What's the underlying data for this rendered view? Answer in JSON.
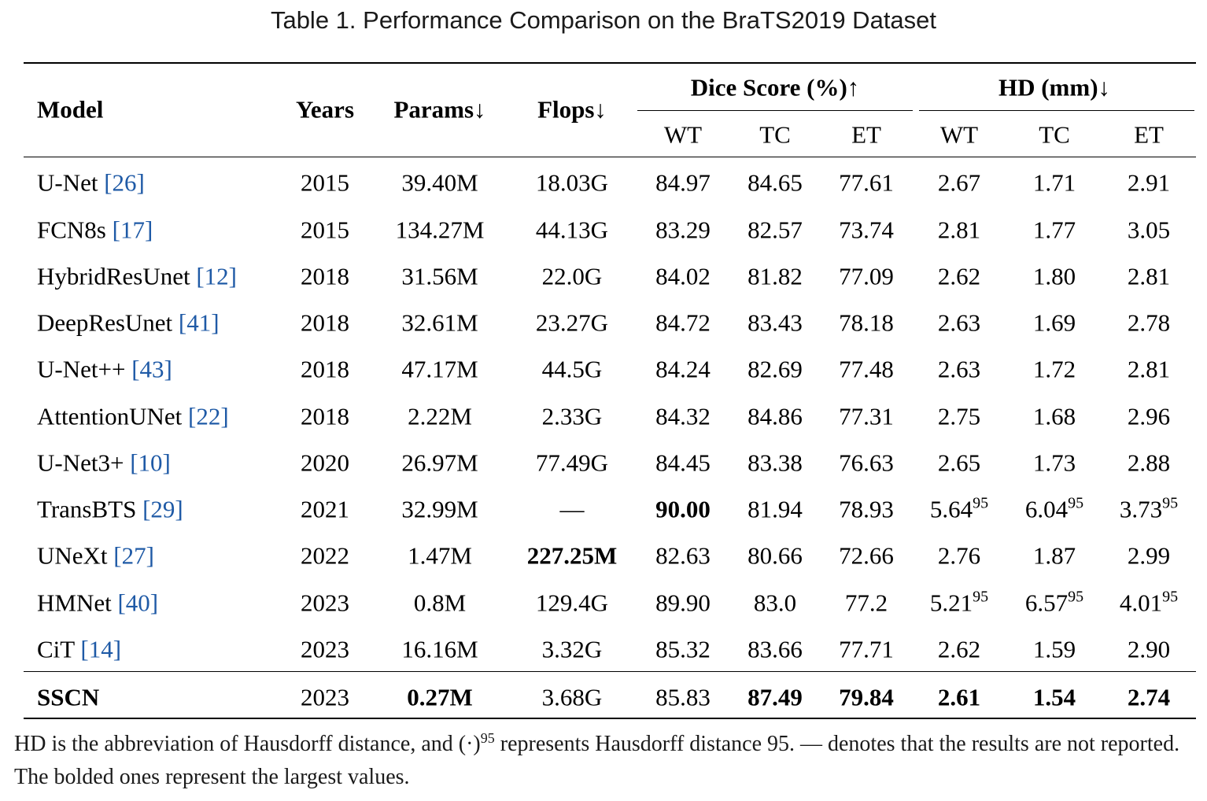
{
  "caption": "Table 1.  Performance Comparison on the BraTS2019 Dataset",
  "headers": {
    "model": "Model",
    "years": "Years",
    "params": "Params↓",
    "flops": "Flops↓",
    "dice_group": "Dice Score (%)↑",
    "hd_group": "HD (mm)↓",
    "sub": [
      "WT",
      "TC",
      "ET",
      "WT",
      "TC",
      "ET"
    ]
  },
  "rows": [
    {
      "name": "U-Net",
      "ref": "[26]",
      "year": "2015",
      "params": "39.40M",
      "flops": "18.03G",
      "dice": [
        "84.97",
        "84.65",
        "77.61"
      ],
      "hd": [
        "2.67",
        "1.71",
        "2.91"
      ]
    },
    {
      "name": "FCN8s",
      "ref": "[17]",
      "year": "2015",
      "params": "134.27M",
      "flops": "44.13G",
      "dice": [
        "83.29",
        "82.57",
        "73.74"
      ],
      "hd": [
        "2.81",
        "1.77",
        "3.05"
      ]
    },
    {
      "name": "HybridResUnet",
      "ref": "[12]",
      "year": "2018",
      "params": "31.56M",
      "flops": "22.0G",
      "dice": [
        "84.02",
        "81.82",
        "77.09"
      ],
      "hd": [
        "2.62",
        "1.80",
        "2.81"
      ]
    },
    {
      "name": "DeepResUnet",
      "ref": "[41]",
      "year": "2018",
      "params": "32.61M",
      "flops": "23.27G",
      "dice": [
        "84.72",
        "83.43",
        "78.18"
      ],
      "hd": [
        "2.63",
        "1.69",
        "2.78"
      ]
    },
    {
      "name": "U-Net++",
      "ref": "[43]",
      "year": "2018",
      "params": "47.17M",
      "flops": "44.5G",
      "dice": [
        "84.24",
        "82.69",
        "77.48"
      ],
      "hd": [
        "2.63",
        "1.72",
        "2.81"
      ]
    },
    {
      "name": "AttentionUNet",
      "ref": "[22]",
      "year": "2018",
      "params": "2.22M",
      "flops": "2.33G",
      "dice": [
        "84.32",
        "84.86",
        "77.31"
      ],
      "hd": [
        "2.75",
        "1.68",
        "2.96"
      ]
    },
    {
      "name": "U-Net3+",
      "ref": "[10]",
      "year": "2020",
      "params": "26.97M",
      "flops": "77.49G",
      "dice": [
        "84.45",
        "83.38",
        "76.63"
      ],
      "hd": [
        "2.65",
        "1.73",
        "2.88"
      ]
    },
    {
      "name": "TransBTS",
      "ref": "[29]",
      "year": "2021",
      "params": "32.99M",
      "flops": "—",
      "dice": [
        "90.00",
        "81.94",
        "78.93"
      ],
      "hd": [
        "5.64",
        "6.04",
        "3.73"
      ],
      "hd_sup": "95",
      "bold": [
        "dice0"
      ]
    },
    {
      "name": "UNeXt",
      "ref": "[27]",
      "year": "2022",
      "params": "1.47M",
      "flops": "227.25M",
      "dice": [
        "82.63",
        "80.66",
        "72.66"
      ],
      "hd": [
        "2.76",
        "1.87",
        "2.99"
      ],
      "bold": [
        "flops"
      ]
    },
    {
      "name": "HMNet",
      "ref": "[40]",
      "year": "2023",
      "params": "0.8M",
      "flops": "129.4G",
      "dice": [
        "89.90",
        "83.0",
        "77.2"
      ],
      "hd": [
        "5.21",
        "6.57",
        "4.01"
      ],
      "hd_sup": "95"
    },
    {
      "name": "CiT",
      "ref": "[14]",
      "year": "2023",
      "params": "16.16M",
      "flops": "3.32G",
      "dice": [
        "85.32",
        "83.66",
        "77.71"
      ],
      "hd": [
        "2.62",
        "1.59",
        "2.90"
      ]
    },
    {
      "name": "SSCN",
      "ref": "",
      "year": "2023",
      "params": "0.27M",
      "flops": "3.68G",
      "dice": [
        "85.83",
        "87.49",
        "79.84"
      ],
      "hd": [
        "2.61",
        "1.54",
        "2.74"
      ],
      "bold": [
        "name",
        "params",
        "dice1",
        "dice2",
        "hd0",
        "hd1",
        "hd2"
      ]
    }
  ],
  "footnote": {
    "part1": "HD is the abbreviation of Hausdorff distance, and (·)",
    "sup": "95",
    "part2": " represents Hausdorff distance 95. — denotes that the results are not reported. The bolded ones represent the largest values."
  }
}
